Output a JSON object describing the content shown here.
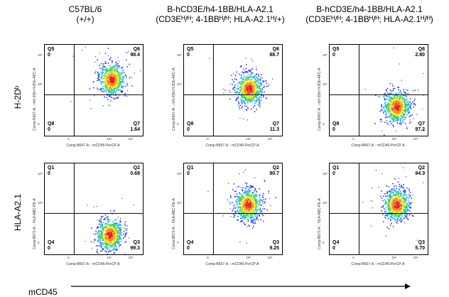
{
  "columns": [
    {
      "line1": "C57BL/6",
      "line2": "(+/+)"
    },
    {
      "line1": "B-hCD3E/h4-1BB/HLA-A2.1",
      "line2": "(CD3Eᴴ/ᴴ; 4-1BBᴴ/ᴴ; HLA-A2.1ᴴ/+)"
    },
    {
      "line1": "B-hCD3E/h4-1BB/HLA-A2.1",
      "line2": "(CD3Eᴴ/ᴴ; 4-1BBᴴ/ᴴ; HLA-A2.1ᴴ/ᴴ)"
    }
  ],
  "rows": [
    {
      "label": "H-2Dᵇ",
      "ylabel": "Comp-R667-A :: mH-2Db H-2Db-APC-A",
      "quadrants": [
        "Q5",
        "Q6",
        "Q8",
        "Q7"
      ]
    },
    {
      "label": "HLA-A2.1",
      "ylabel": "Comp-B572-A :: HLA-ABC-PE-A",
      "quadrants": [
        "Q1",
        "Q2",
        "Q4",
        "Q3"
      ]
    }
  ],
  "xlabel": "Comp-B667-A :: mCD45-PerCP-A",
  "x_axis_title": "mCD45",
  "ticks": {
    "zero": "0",
    "e4": "10⁴",
    "e5": "10⁵"
  },
  "chart_data": [
    {
      "type": "scatter",
      "row": 0,
      "col": 0,
      "quadrant_values": {
        "Q5": "0",
        "Q6": "98.4",
        "Q8": "0",
        "Q7": "1.64"
      },
      "cluster": {
        "x": 0.68,
        "y": 0.62
      }
    },
    {
      "type": "scatter",
      "row": 0,
      "col": 1,
      "quadrant_values": {
        "Q5": "0",
        "Q6": "88.7",
        "Q8": "0",
        "Q7": "11.3"
      },
      "cluster": {
        "x": 0.66,
        "y": 0.52
      }
    },
    {
      "type": "scatter",
      "row": 0,
      "col": 2,
      "quadrant_values": {
        "Q5": "0",
        "Q6": "2.80",
        "Q8": "0",
        "Q7": "97.2"
      },
      "cluster": {
        "x": 0.68,
        "y": 0.32
      }
    },
    {
      "type": "scatter",
      "row": 1,
      "col": 0,
      "quadrant_values": {
        "Q1": "0",
        "Q2": "0.69",
        "Q4": "0",
        "Q3": "99.3"
      },
      "cluster": {
        "x": 0.66,
        "y": 0.22
      }
    },
    {
      "type": "scatter",
      "row": 1,
      "col": 1,
      "quadrant_values": {
        "Q1": "0",
        "Q2": "90.7",
        "Q4": "0",
        "Q3": "9.25"
      },
      "cluster": {
        "x": 0.65,
        "y": 0.55
      }
    },
    {
      "type": "scatter",
      "row": 1,
      "col": 2,
      "quadrant_values": {
        "Q1": "0",
        "Q2": "94.3",
        "Q4": "0",
        "Q3": "5.70"
      },
      "cluster": {
        "x": 0.68,
        "y": 0.55
      }
    }
  ]
}
